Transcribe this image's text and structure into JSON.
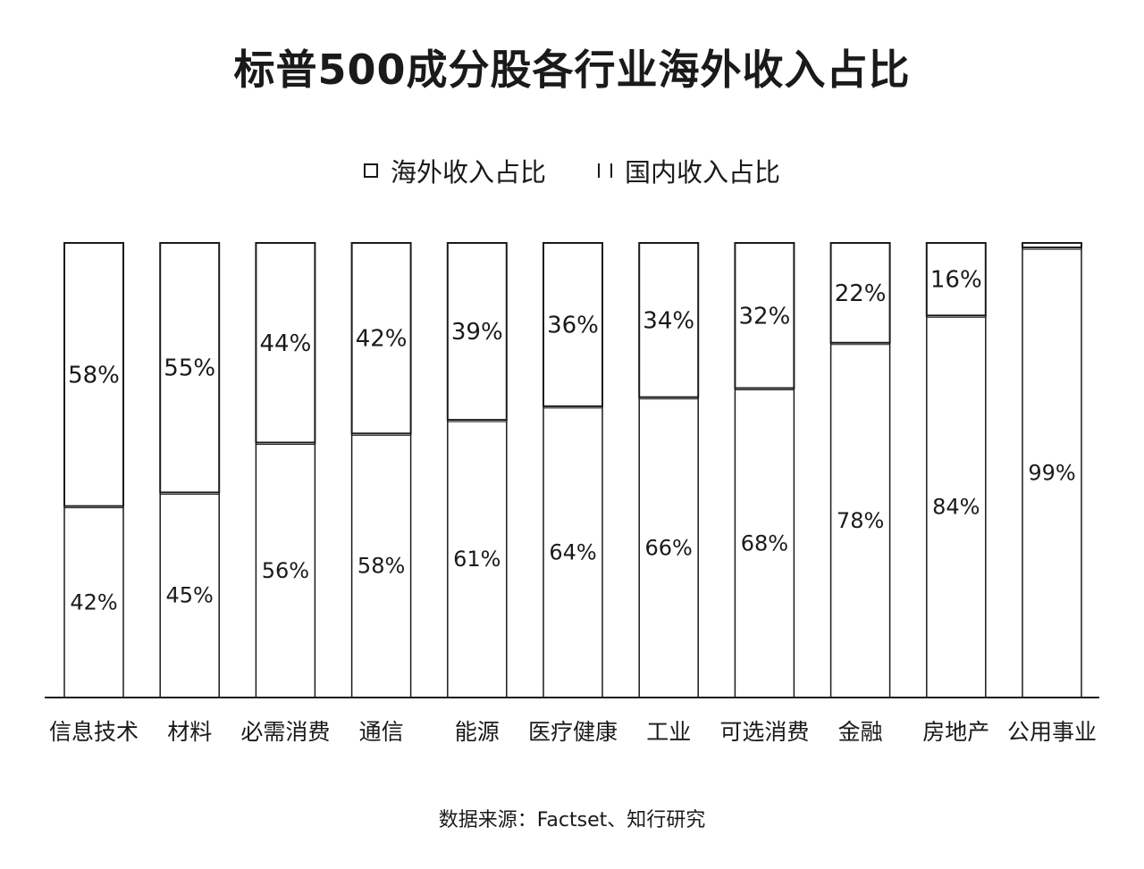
{
  "chart_data": {
    "type": "bar",
    "stacked": true,
    "percent": true,
    "title": "标普500成分股各行业海外收入占比",
    "categories": [
      "信息技术",
      "材料",
      "必需消费",
      "通信",
      "能源",
      "医疗健康",
      "工业",
      "可选消费",
      "金融",
      "房地产",
      "公用事业"
    ],
    "series": [
      {
        "name": "海外收入占比",
        "values": [
          58,
          55,
          44,
          42,
          39,
          36,
          34,
          32,
          22,
          16,
          1
        ],
        "labels": [
          "58%",
          "55%",
          "44%",
          "42%",
          "39%",
          "36%",
          "34%",
          "32%",
          "22%",
          "16%",
          ""
        ]
      },
      {
        "name": "国内收入占比",
        "values": [
          42,
          45,
          56,
          58,
          61,
          64,
          66,
          68,
          78,
          84,
          99
        ],
        "labels": [
          "42%",
          "45%",
          "56%",
          "58%",
          "61%",
          "64%",
          "66%",
          "68%",
          "78%",
          "84%",
          "99%"
        ]
      }
    ],
    "ylim": [
      0,
      100
    ],
    "grid": false,
    "legend_position": "top-center",
    "source": "数据来源：Factset、知行研究",
    "colors": {
      "ink": "#1a1a1a",
      "background": "#ffffff"
    }
  }
}
